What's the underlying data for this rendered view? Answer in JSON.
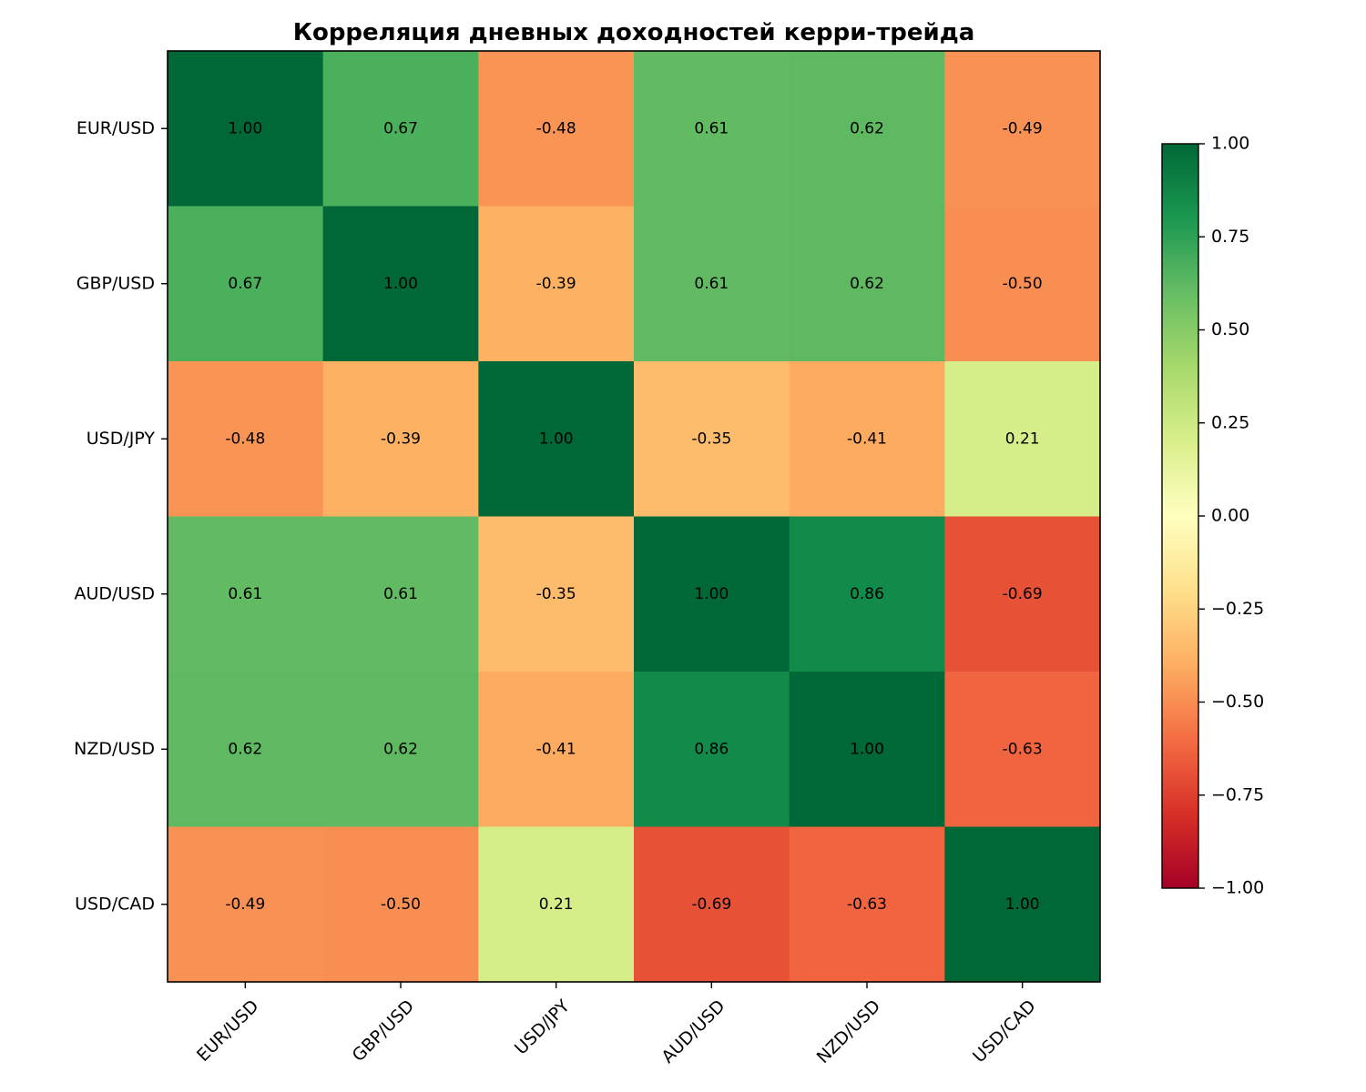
{
  "chart_data": {
    "type": "heatmap",
    "title": "Корреляция дневных доходностей керри-трейда",
    "xlabel": "",
    "ylabel": "",
    "x_categories": [
      "EUR/USD",
      "GBP/USD",
      "USD/JPY",
      "AUD/USD",
      "NZD/USD",
      "USD/CAD"
    ],
    "y_categories": [
      "EUR/USD",
      "GBP/USD",
      "USD/JPY",
      "AUD/USD",
      "NZD/USD",
      "USD/CAD"
    ],
    "values": [
      [
        1.0,
        0.67,
        -0.48,
        0.61,
        0.62,
        -0.49
      ],
      [
        0.67,
        1.0,
        -0.39,
        0.61,
        0.62,
        -0.5
      ],
      [
        -0.48,
        -0.39,
        1.0,
        -0.35,
        -0.41,
        0.21
      ],
      [
        0.61,
        0.61,
        -0.35,
        1.0,
        0.86,
        -0.69
      ],
      [
        0.62,
        0.62,
        -0.41,
        0.86,
        1.0,
        -0.63
      ],
      [
        -0.49,
        -0.5,
        0.21,
        -0.69,
        -0.63,
        1.0
      ]
    ],
    "cell_labels": [
      [
        "1.00",
        "0.67",
        "-0.48",
        "0.61",
        "0.62",
        "-0.49"
      ],
      [
        "0.67",
        "1.00",
        "-0.39",
        "0.61",
        "0.62",
        "-0.50"
      ],
      [
        "-0.48",
        "-0.39",
        "1.00",
        "-0.35",
        "-0.41",
        "0.21"
      ],
      [
        "0.61",
        "0.61",
        "-0.35",
        "1.00",
        "0.86",
        "-0.69"
      ],
      [
        "0.62",
        "0.62",
        "-0.41",
        "0.86",
        "1.00",
        "-0.63"
      ],
      [
        "-0.49",
        "-0.50",
        "0.21",
        "-0.69",
        "-0.63",
        "1.00"
      ]
    ],
    "colorbar": {
      "range": [
        -1.0,
        1.0
      ],
      "ticks": [
        1.0,
        0.75,
        0.5,
        0.25,
        0.0,
        -0.25,
        -0.5,
        -0.75,
        -1.0
      ],
      "tick_labels": [
        "1.00",
        "0.75",
        "0.50",
        "0.25",
        "0.00",
        "−0.25",
        "−0.50",
        "−0.75",
        "−1.00"
      ],
      "colormap": "RdYlGn"
    },
    "x_tick_rotation": "45° (right-aligned)",
    "grid": false
  }
}
